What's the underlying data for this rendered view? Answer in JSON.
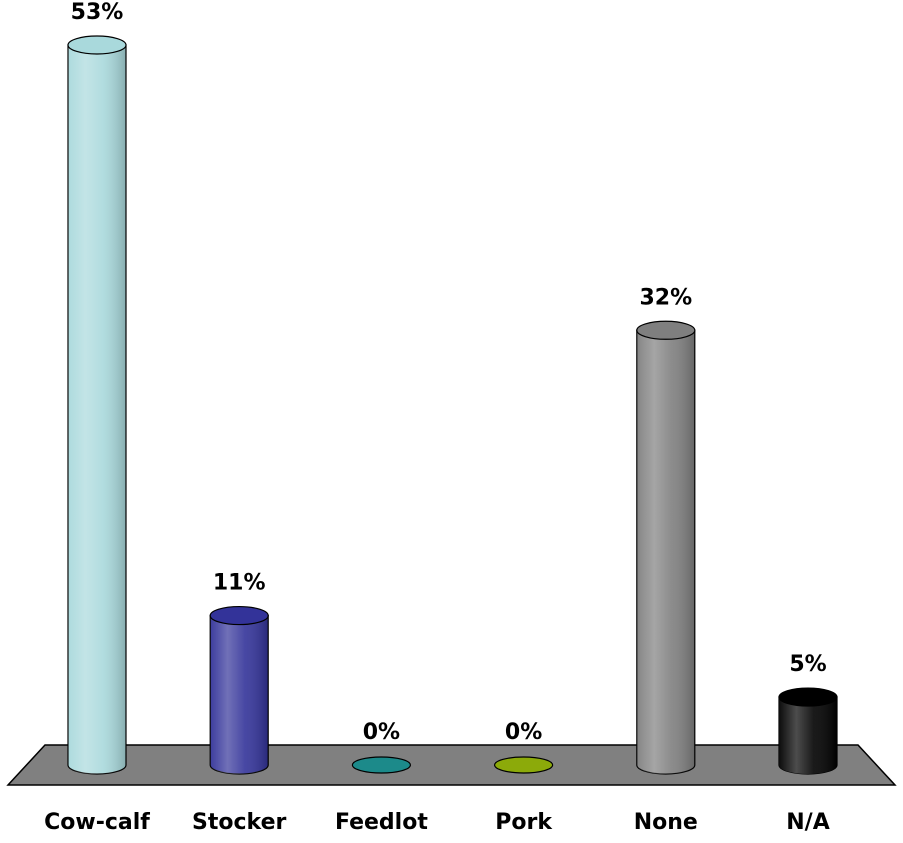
{
  "chart_data": {
    "type": "bar",
    "categories": [
      "Cow-calf",
      "Stocker",
      "Feedlot",
      "Pork",
      "None",
      "N/A"
    ],
    "values": [
      53,
      11,
      0,
      0,
      32,
      5
    ],
    "value_labels": [
      "53%",
      "11%",
      "0%",
      "0%",
      "32%",
      "5%"
    ],
    "colors": [
      "#a9d9dc",
      "#333399",
      "#1c8a8a",
      "#8caa0a",
      "#7f7f7f",
      "#000000"
    ]
  }
}
